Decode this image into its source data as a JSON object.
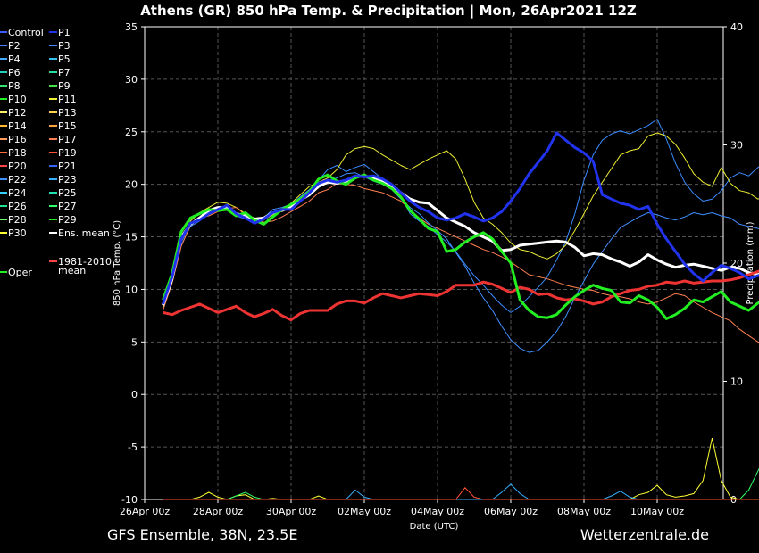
{
  "title": "Athens  (GR)  850 hPa Temp. & Precipitation | Mon, 26Apr2021 12Z",
  "footer_left": "GFS Ensemble, 38N, 23.5E",
  "footer_right": "Wetterzentrale.de",
  "chart_data": {
    "type": "line",
    "xlabel": "Date (UTC)",
    "ylabel": "850 hPa Temp. (°C)",
    "y2label": "Precipitation (mm)",
    "ylim": [
      -10,
      35
    ],
    "y2lim": [
      0,
      40
    ],
    "yticks": [
      "35",
      "30",
      "25",
      "20",
      "15",
      "10",
      "5",
      "0",
      "-5",
      "-10"
    ],
    "y2ticks": [
      "40",
      "30",
      "20",
      "10",
      "0"
    ],
    "x_tick_labels": [
      "26Apr 00z",
      "28Apr 00z",
      "30Apr 00z",
      "02May 00z",
      "04May 00z",
      "06May 00z",
      "08May 00z",
      "10May 00z"
    ],
    "x_start": "2021-04-26 12Z",
    "x_step_hours": 6,
    "grid": true,
    "legend_placement": "left outside",
    "legend_entries": [
      {
        "name": "Control",
        "color": "#3b5bff"
      },
      {
        "name": "P1",
        "color": "#2233ee"
      },
      {
        "name": "P2",
        "color": "#4a7cff"
      },
      {
        "name": "P3",
        "color": "#3a8cff"
      },
      {
        "name": "P4",
        "color": "#44aaff"
      },
      {
        "name": "P5",
        "color": "#33c2ee"
      },
      {
        "name": "P6",
        "color": "#22d0c0"
      },
      {
        "name": "P7",
        "color": "#22e0a0"
      },
      {
        "name": "P8",
        "color": "#33e070"
      },
      {
        "name": "P9",
        "color": "#44e040"
      },
      {
        "name": "P10",
        "color": "#22ee22"
      },
      {
        "name": "P11",
        "color": "#eeee33"
      },
      {
        "name": "P12",
        "color": "#ffee66"
      },
      {
        "name": "P13",
        "color": "#ffd24a"
      },
      {
        "name": "P14",
        "color": "#ffb830"
      },
      {
        "name": "P15",
        "color": "#ffa040"
      },
      {
        "name": "P16",
        "color": "#ff9a5a"
      },
      {
        "name": "P17",
        "color": "#ff8050"
      },
      {
        "name": "P18",
        "color": "#ff6a3a"
      },
      {
        "name": "P19",
        "color": "#ff5030"
      },
      {
        "name": "P20",
        "color": "#ff4444"
      },
      {
        "name": "P21",
        "color": "#3366ff"
      },
      {
        "name": "P22",
        "color": "#3f8fff"
      },
      {
        "name": "P23",
        "color": "#33b0ff"
      },
      {
        "name": "P24",
        "color": "#33d0ff"
      },
      {
        "name": "P25",
        "color": "#22e0b0"
      },
      {
        "name": "P26",
        "color": "#22e090"
      },
      {
        "name": "P27",
        "color": "#33ff66"
      },
      {
        "name": "P28",
        "color": "#66ff66"
      },
      {
        "name": "P29",
        "color": "#22ee22"
      },
      {
        "name": "P30",
        "color": "#ffff33"
      },
      {
        "name": "Ens. mean",
        "color": "#ffffff"
      },
      {
        "name": "1981-2010 mean",
        "color": "#ff4444",
        "label_lines": [
          "1981-2010",
          "mean"
        ]
      },
      {
        "name": "Oper",
        "color": "#22ee22"
      }
    ],
    "series": [
      {
        "name": "Ens. mean",
        "color": "#ffffff",
        "values": [
          8.5,
          11,
          15,
          16.2,
          16.8,
          17.5,
          17.8,
          17.8,
          17.2,
          17.0,
          16.7,
          16.8,
          17.3,
          17.5,
          17.8,
          18.5,
          19.0,
          19.8,
          20.2,
          20.1,
          20.3,
          20.7,
          20.8,
          20.6,
          20.3,
          19.8,
          19.2,
          18.6,
          18.3,
          18.2,
          17.5,
          16.8,
          16.4,
          16.0,
          15.4,
          15.0,
          14.6,
          13.7,
          13.8,
          14.2,
          14.3,
          14.4,
          14.5,
          14.6,
          14.5,
          14.0,
          13.2,
          13.4,
          13.3,
          12.9,
          12.6,
          12.2,
          12.6,
          13.3,
          12.8,
          12.4,
          12.1,
          12.3,
          12.4,
          12.2,
          12.0,
          11.8,
          12.1,
          12.0,
          11.6,
          11.4,
          11.8
        ]
      },
      {
        "name": "1981-2010 mean",
        "color": "#ee3333",
        "values": [
          7.8,
          7.6,
          8.0,
          8.3,
          8.6,
          8.2,
          7.8,
          8.1,
          8.4,
          7.8,
          7.4,
          7.7,
          8.1,
          7.5,
          7.1,
          7.7,
          8.0,
          8.0,
          8.0,
          8.6,
          8.9,
          8.9,
          8.7,
          9.2,
          9.6,
          9.4,
          9.2,
          9.4,
          9.6,
          9.5,
          9.4,
          9.8,
          10.4,
          10.4,
          10.4,
          10.7,
          10.5,
          10.1,
          9.7,
          10.2,
          10.0,
          9.5,
          9.6,
          9.2,
          9.0,
          9.1,
          8.9,
          8.6,
          8.8,
          9.3,
          9.6,
          9.9,
          10.0,
          10.3,
          10.4,
          10.7,
          10.6,
          10.8,
          10.6,
          10.7,
          10.8,
          10.8,
          10.9,
          11.1,
          11.4,
          11.7,
          11.9
        ]
      },
      {
        "name": "Oper",
        "color": "#22ee22",
        "values": [
          9.0,
          11.5,
          15.5,
          16.8,
          17.2,
          17.6,
          17.5,
          17.6,
          17.0,
          17.3,
          16.6,
          16.2,
          16.9,
          17.6,
          18.1,
          18.6,
          19.3,
          20.5,
          20.9,
          20.3,
          20.0,
          20.6,
          20.9,
          20.4,
          20.1,
          19.6,
          18.8,
          17.5,
          16.7,
          15.8,
          15.5,
          13.6,
          13.8,
          14.5,
          15.0,
          15.4,
          14.8,
          13.6,
          12.5,
          9.0,
          8.0,
          7.4,
          7.3,
          7.6,
          8.5,
          9.3,
          9.9,
          10.4,
          10.1,
          9.9,
          8.8,
          8.7,
          9.4,
          9.0,
          8.3,
          7.2,
          7.6,
          8.2,
          9.0,
          8.8,
          9.3,
          9.8,
          8.8,
          8.4,
          8.0,
          8.7,
          9.1
        ]
      },
      {
        "name": "P1",
        "color": "#2233ee",
        "values": [
          8.6,
          11.2,
          14.8,
          16.3,
          16.6,
          17.2,
          17.6,
          18.0,
          17.2,
          16.8,
          16.3,
          16.7,
          17.3,
          17.6,
          17.6,
          18.4,
          19.2,
          20.1,
          20.4,
          20.2,
          20.4,
          20.8,
          20.7,
          20.8,
          20.5,
          20.0,
          19.2,
          18.4,
          17.8,
          17.4,
          16.8,
          16.6,
          16.8,
          17.2,
          16.9,
          16.5,
          16.8,
          17.4,
          18.4,
          19.6,
          21.0,
          22.1,
          23.2,
          24.9,
          24.2,
          23.5,
          23.0,
          22.2,
          19.0,
          18.6,
          18.2,
          18.0,
          17.6,
          17.9,
          16.2,
          14.8,
          13.6,
          12.4,
          11.5,
          10.8,
          11.6,
          12.3,
          12.0,
          11.6,
          11.0,
          11.3,
          11.6
        ]
      },
      {
        "name": "P3",
        "color": "#3a8cff",
        "values": [
          8.2,
          10.8,
          14.2,
          16.0,
          16.5,
          17.2,
          17.5,
          17.7,
          17.0,
          16.7,
          16.3,
          16.8,
          17.6,
          17.8,
          18.1,
          18.8,
          19.5,
          20.4,
          21.4,
          21.8,
          21.2,
          21.6,
          21.9,
          21.2,
          20.5,
          19.5,
          18.8,
          17.2,
          16.5,
          16.0,
          15.2,
          14.5,
          13.6,
          12.4,
          11.3,
          10.4,
          9.4,
          8.5,
          7.8,
          8.4,
          9.3,
          10.2,
          11.2,
          12.8,
          14.5,
          17.2,
          20.4,
          22.8,
          24.2,
          24.8,
          25.1,
          24.8,
          25.2,
          25.6,
          26.2,
          24.3,
          22.0,
          20.2,
          19.1,
          18.4,
          18.6,
          19.4,
          20.6,
          21.1,
          20.8,
          21.6,
          22.1
        ]
      },
      {
        "name": "P11",
        "color": "#eeee33",
        "values": [
          8.3,
          11.0,
          14.6,
          16.5,
          17.3,
          17.8,
          18.3,
          18.2,
          17.8,
          17.2,
          16.8,
          16.6,
          17.1,
          17.5,
          18.2,
          19.0,
          19.8,
          20.2,
          20.6,
          21.4,
          22.8,
          23.4,
          23.6,
          23.4,
          22.8,
          22.3,
          21.8,
          21.4,
          21.9,
          22.4,
          22.8,
          23.2,
          22.4,
          20.5,
          18.3,
          16.8,
          16.2,
          15.4,
          14.4,
          13.8,
          13.6,
          13.2,
          12.9,
          13.4,
          14.2,
          15.6,
          17.2,
          18.9,
          20.2,
          21.5,
          22.8,
          23.2,
          23.4,
          24.6,
          24.9,
          24.6,
          23.8,
          22.5,
          21.0,
          20.2,
          19.8,
          21.6,
          20.1,
          19.4,
          19.2,
          18.6,
          18.9
        ]
      },
      {
        "name": "P17",
        "color": "#ff8050",
        "values": [
          8.0,
          10.6,
          14.1,
          16.1,
          16.8,
          17.0,
          17.4,
          17.7,
          17.8,
          17.1,
          16.8,
          16.4,
          16.5,
          16.9,
          17.4,
          17.9,
          18.4,
          19.2,
          19.5,
          20.1,
          20.0,
          19.9,
          19.6,
          19.4,
          19.2,
          18.8,
          18.4,
          17.6,
          16.8,
          16.2,
          15.8,
          15.4,
          15.0,
          14.6,
          14.2,
          13.8,
          13.5,
          13.1,
          12.6,
          12.0,
          11.4,
          11.2,
          11.0,
          10.7,
          10.4,
          10.2,
          10.0,
          9.9,
          9.6,
          9.4,
          9.3,
          9.1,
          8.8,
          8.6,
          8.8,
          9.2,
          9.6,
          9.4,
          8.8,
          8.3,
          7.8,
          7.4,
          7.0,
          6.2,
          5.6,
          5.0,
          4.8
        ]
      },
      {
        "name": "P22",
        "color": "#3f8fff",
        "values": [
          8.5,
          11.0,
          14.5,
          16.2,
          16.9,
          17.5,
          17.8,
          17.5,
          17.1,
          16.9,
          16.4,
          16.6,
          17.2,
          17.6,
          18.0,
          18.6,
          19.3,
          20.0,
          20.3,
          20.6,
          21.0,
          21.1,
          20.7,
          20.3,
          20.0,
          19.5,
          18.6,
          17.8,
          17.2,
          16.3,
          15.6,
          14.8,
          13.5,
          12.2,
          10.6,
          9.2,
          8.0,
          6.5,
          5.2,
          4.4,
          4.0,
          4.2,
          5.0,
          6.0,
          7.4,
          9.2,
          10.8,
          12.4,
          13.6,
          14.8,
          15.9,
          16.4,
          16.9,
          17.3,
          17.1,
          16.8,
          16.6,
          16.9,
          17.3,
          17.1,
          17.3,
          17.0,
          16.8,
          16.2,
          16.0,
          15.8,
          15.5
        ]
      }
    ],
    "precipitation": [
      {
        "name": "P30",
        "color": "#ffff33",
        "values": [
          0,
          0,
          0,
          0,
          0.2,
          0.6,
          0.2,
          0,
          0.3,
          0.4,
          0,
          0,
          0.1,
          0,
          0,
          0,
          0,
          0.3,
          0,
          0,
          0,
          0,
          0,
          0,
          0,
          0,
          0,
          0,
          0,
          0,
          0,
          0,
          0,
          0,
          0,
          0,
          0,
          0,
          0,
          0,
          0,
          0,
          0,
          0,
          0,
          0,
          0,
          0,
          0,
          0,
          0,
          0,
          0.4,
          0.6,
          1.2,
          0.4,
          0.2,
          0.3,
          0.5,
          1.6,
          5.2,
          1.6,
          0.2,
          0,
          0,
          0,
          0
        ]
      },
      {
        "name": "P27",
        "color": "#33ff66",
        "values": [
          0,
          0,
          0,
          0,
          0,
          0,
          0,
          0,
          0.3,
          0.6,
          0.2,
          0,
          0,
          0,
          0,
          0,
          0,
          0,
          0,
          0,
          0,
          0,
          0,
          0,
          0,
          0,
          0,
          0,
          0,
          0,
          0,
          0,
          0,
          0,
          0,
          0,
          0,
          0,
          0,
          0,
          0,
          0,
          0,
          0,
          0,
          0,
          0,
          0,
          0,
          0,
          0,
          0,
          0,
          0,
          0,
          0,
          0,
          0,
          0,
          0,
          0,
          0,
          0,
          0,
          0.8,
          2.4,
          4.0
        ]
      },
      {
        "name": "P23",
        "color": "#33b0ff",
        "values": [
          0,
          0,
          0,
          0,
          0,
          0,
          0,
          0,
          0,
          0,
          0,
          0,
          0,
          0,
          0,
          0,
          0,
          0,
          0,
          0,
          0,
          0.8,
          0.2,
          0,
          0,
          0,
          0,
          0,
          0,
          0,
          0,
          0,
          0,
          0,
          0,
          0,
          0,
          0.6,
          1.3,
          0.5,
          0,
          0,
          0,
          0,
          0,
          0,
          0,
          0,
          0,
          0.3,
          0.7,
          0.2,
          0,
          0,
          0,
          0,
          0,
          0,
          0,
          0,
          0,
          0,
          0,
          0,
          0,
          0,
          0
        ]
      },
      {
        "name": "P19",
        "color": "#ff5030",
        "values": [
          0,
          0,
          0,
          0,
          0,
          0,
          0,
          0,
          0,
          0,
          0,
          0,
          0,
          0,
          0,
          0,
          0,
          0,
          0,
          0,
          0,
          0,
          0,
          0,
          0,
          0,
          0,
          0,
          0,
          0,
          0,
          0,
          0,
          1.0,
          0.2,
          0,
          0,
          0,
          0,
          0,
          0,
          0,
          0,
          0,
          0,
          0,
          0,
          0,
          0,
          0,
          0,
          0,
          0,
          0,
          0,
          0,
          0,
          0,
          0,
          0,
          0,
          0,
          0,
          0,
          0,
          0,
          0
        ]
      }
    ]
  }
}
